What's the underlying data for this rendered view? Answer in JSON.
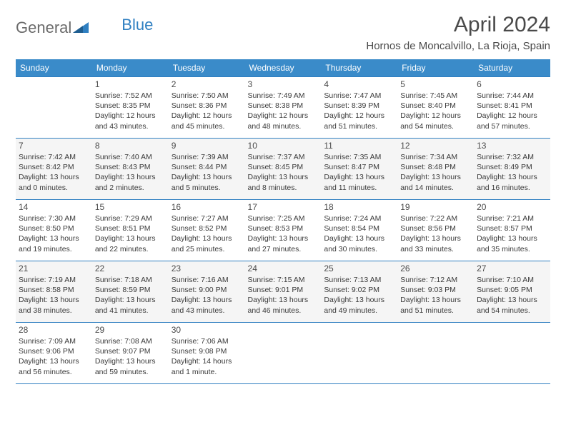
{
  "brand": {
    "text1": "General",
    "text2": "Blue",
    "text_color": "#6b6b6b",
    "accent_color": "#2f7fc1"
  },
  "header": {
    "title": "April 2024",
    "location": "Hornos de Moncalvillo, La Rioja, Spain"
  },
  "colors": {
    "header_bg": "#3a8bc9",
    "header_fg": "#ffffff",
    "row_border": "#2f7fc1",
    "alt_row_bg": "#f5f5f5",
    "text": "#3a3a3a"
  },
  "days_of_week": [
    "Sunday",
    "Monday",
    "Tuesday",
    "Wednesday",
    "Thursday",
    "Friday",
    "Saturday"
  ],
  "weeks": [
    [
      null,
      {
        "n": "1",
        "sunrise": "Sunrise: 7:52 AM",
        "sunset": "Sunset: 8:35 PM",
        "day1": "Daylight: 12 hours",
        "day2": "and 43 minutes."
      },
      {
        "n": "2",
        "sunrise": "Sunrise: 7:50 AM",
        "sunset": "Sunset: 8:36 PM",
        "day1": "Daylight: 12 hours",
        "day2": "and 45 minutes."
      },
      {
        "n": "3",
        "sunrise": "Sunrise: 7:49 AM",
        "sunset": "Sunset: 8:38 PM",
        "day1": "Daylight: 12 hours",
        "day2": "and 48 minutes."
      },
      {
        "n": "4",
        "sunrise": "Sunrise: 7:47 AM",
        "sunset": "Sunset: 8:39 PM",
        "day1": "Daylight: 12 hours",
        "day2": "and 51 minutes."
      },
      {
        "n": "5",
        "sunrise": "Sunrise: 7:45 AM",
        "sunset": "Sunset: 8:40 PM",
        "day1": "Daylight: 12 hours",
        "day2": "and 54 minutes."
      },
      {
        "n": "6",
        "sunrise": "Sunrise: 7:44 AM",
        "sunset": "Sunset: 8:41 PM",
        "day1": "Daylight: 12 hours",
        "day2": "and 57 minutes."
      }
    ],
    [
      {
        "n": "7",
        "sunrise": "Sunrise: 7:42 AM",
        "sunset": "Sunset: 8:42 PM",
        "day1": "Daylight: 13 hours",
        "day2": "and 0 minutes."
      },
      {
        "n": "8",
        "sunrise": "Sunrise: 7:40 AM",
        "sunset": "Sunset: 8:43 PM",
        "day1": "Daylight: 13 hours",
        "day2": "and 2 minutes."
      },
      {
        "n": "9",
        "sunrise": "Sunrise: 7:39 AM",
        "sunset": "Sunset: 8:44 PM",
        "day1": "Daylight: 13 hours",
        "day2": "and 5 minutes."
      },
      {
        "n": "10",
        "sunrise": "Sunrise: 7:37 AM",
        "sunset": "Sunset: 8:45 PM",
        "day1": "Daylight: 13 hours",
        "day2": "and 8 minutes."
      },
      {
        "n": "11",
        "sunrise": "Sunrise: 7:35 AM",
        "sunset": "Sunset: 8:47 PM",
        "day1": "Daylight: 13 hours",
        "day2": "and 11 minutes."
      },
      {
        "n": "12",
        "sunrise": "Sunrise: 7:34 AM",
        "sunset": "Sunset: 8:48 PM",
        "day1": "Daylight: 13 hours",
        "day2": "and 14 minutes."
      },
      {
        "n": "13",
        "sunrise": "Sunrise: 7:32 AM",
        "sunset": "Sunset: 8:49 PM",
        "day1": "Daylight: 13 hours",
        "day2": "and 16 minutes."
      }
    ],
    [
      {
        "n": "14",
        "sunrise": "Sunrise: 7:30 AM",
        "sunset": "Sunset: 8:50 PM",
        "day1": "Daylight: 13 hours",
        "day2": "and 19 minutes."
      },
      {
        "n": "15",
        "sunrise": "Sunrise: 7:29 AM",
        "sunset": "Sunset: 8:51 PM",
        "day1": "Daylight: 13 hours",
        "day2": "and 22 minutes."
      },
      {
        "n": "16",
        "sunrise": "Sunrise: 7:27 AM",
        "sunset": "Sunset: 8:52 PM",
        "day1": "Daylight: 13 hours",
        "day2": "and 25 minutes."
      },
      {
        "n": "17",
        "sunrise": "Sunrise: 7:25 AM",
        "sunset": "Sunset: 8:53 PM",
        "day1": "Daylight: 13 hours",
        "day2": "and 27 minutes."
      },
      {
        "n": "18",
        "sunrise": "Sunrise: 7:24 AM",
        "sunset": "Sunset: 8:54 PM",
        "day1": "Daylight: 13 hours",
        "day2": "and 30 minutes."
      },
      {
        "n": "19",
        "sunrise": "Sunrise: 7:22 AM",
        "sunset": "Sunset: 8:56 PM",
        "day1": "Daylight: 13 hours",
        "day2": "and 33 minutes."
      },
      {
        "n": "20",
        "sunrise": "Sunrise: 7:21 AM",
        "sunset": "Sunset: 8:57 PM",
        "day1": "Daylight: 13 hours",
        "day2": "and 35 minutes."
      }
    ],
    [
      {
        "n": "21",
        "sunrise": "Sunrise: 7:19 AM",
        "sunset": "Sunset: 8:58 PM",
        "day1": "Daylight: 13 hours",
        "day2": "and 38 minutes."
      },
      {
        "n": "22",
        "sunrise": "Sunrise: 7:18 AM",
        "sunset": "Sunset: 8:59 PM",
        "day1": "Daylight: 13 hours",
        "day2": "and 41 minutes."
      },
      {
        "n": "23",
        "sunrise": "Sunrise: 7:16 AM",
        "sunset": "Sunset: 9:00 PM",
        "day1": "Daylight: 13 hours",
        "day2": "and 43 minutes."
      },
      {
        "n": "24",
        "sunrise": "Sunrise: 7:15 AM",
        "sunset": "Sunset: 9:01 PM",
        "day1": "Daylight: 13 hours",
        "day2": "and 46 minutes."
      },
      {
        "n": "25",
        "sunrise": "Sunrise: 7:13 AM",
        "sunset": "Sunset: 9:02 PM",
        "day1": "Daylight: 13 hours",
        "day2": "and 49 minutes."
      },
      {
        "n": "26",
        "sunrise": "Sunrise: 7:12 AM",
        "sunset": "Sunset: 9:03 PM",
        "day1": "Daylight: 13 hours",
        "day2": "and 51 minutes."
      },
      {
        "n": "27",
        "sunrise": "Sunrise: 7:10 AM",
        "sunset": "Sunset: 9:05 PM",
        "day1": "Daylight: 13 hours",
        "day2": "and 54 minutes."
      }
    ],
    [
      {
        "n": "28",
        "sunrise": "Sunrise: 7:09 AM",
        "sunset": "Sunset: 9:06 PM",
        "day1": "Daylight: 13 hours",
        "day2": "and 56 minutes."
      },
      {
        "n": "29",
        "sunrise": "Sunrise: 7:08 AM",
        "sunset": "Sunset: 9:07 PM",
        "day1": "Daylight: 13 hours",
        "day2": "and 59 minutes."
      },
      {
        "n": "30",
        "sunrise": "Sunrise: 7:06 AM",
        "sunset": "Sunset: 9:08 PM",
        "day1": "Daylight: 14 hours",
        "day2": "and 1 minute."
      },
      null,
      null,
      null,
      null
    ]
  ]
}
